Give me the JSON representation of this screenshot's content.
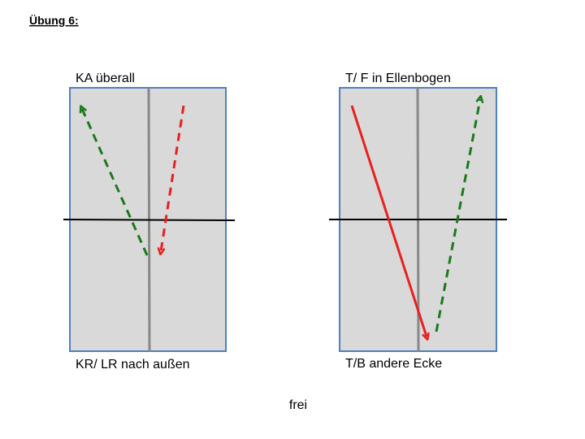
{
  "header": {
    "title": "Übung 6:"
  },
  "panels": [
    {
      "top_label": "KA überall",
      "bottom_label": "KR/ LR nach außen"
    },
    {
      "top_label": "T/ F in Ellenbogen",
      "bottom_label": "T/B andere Ecke"
    }
  ],
  "footer": {
    "text": "frei"
  }
}
